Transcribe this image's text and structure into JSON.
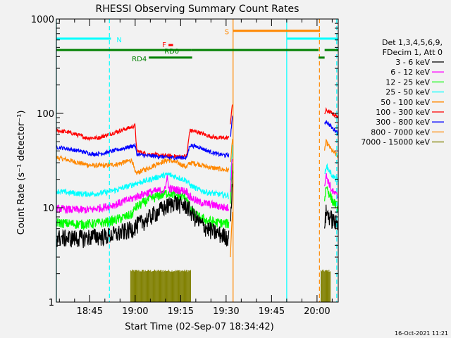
{
  "chart_data": {
    "type": "line",
    "title": "RHESSI Observing Summary Count Rates",
    "ylabel": "Count Rate (s⁻¹ detector⁻¹)",
    "xlabel": "Start Time (02-Sep-07 18:34:42)",
    "x_range_minutes_from_1834": [
      0,
      93
    ],
    "ylim": [
      1,
      1000
    ],
    "y_scale": "log",
    "y_ticks": [
      1,
      10,
      100,
      1000
    ],
    "y_tick_labels": [
      "1",
      "10",
      "100",
      "1000"
    ],
    "x_ticks": [
      {
        "min": 11,
        "label": "18:45"
      },
      {
        "min": 26,
        "label": "19:00"
      },
      {
        "min": 41,
        "label": "19:15"
      },
      {
        "min": 56,
        "label": "19:30"
      },
      {
        "min": 71,
        "label": "19:45"
      },
      {
        "min": 86,
        "label": "20:00"
      }
    ],
    "legend": {
      "header": [
        "Det 1,3,4,5,6,9,",
        "FDecim 1, Att 0"
      ],
      "placement": "right",
      "entries": [
        {
          "label": "3 - 6 keV",
          "color": "#000000"
        },
        {
          "label": "6 - 12 keV",
          "color": "#ff00ff"
        },
        {
          "label": "12 - 25 keV",
          "color": "#00ff00"
        },
        {
          "label": "25 - 50 keV",
          "color": "#00ffff"
        },
        {
          "label": "50 - 100 keV",
          "color": "#ff8800"
        },
        {
          "label": "100 - 300 keV",
          "color": "#ff0000"
        },
        {
          "label": "300 - 800 keV",
          "color": "#0000ff"
        },
        {
          "label": "800 - 7000 keV",
          "color": "#ff8800"
        },
        {
          "label": "7000 - 15000 keV",
          "color": "#808000"
        }
      ]
    },
    "series": [
      {
        "name": "3 - 6 keV",
        "color": "#000000",
        "noise": 0.22,
        "segments": [
          [
            [
              0,
              4.8
            ],
            [
              4,
              4.8
            ],
            [
              9,
              4.8
            ],
            [
              12,
              5.0
            ],
            [
              16,
              5.0
            ],
            [
              20,
              5.3
            ],
            [
              25,
              6.0
            ],
            [
              26,
              6.4
            ],
            [
              29,
              7.3
            ],
            [
              32,
              8.5
            ],
            [
              35,
              9.8
            ],
            [
              38,
              11.0
            ],
            [
              39,
              12.0
            ],
            [
              40,
              11.0
            ],
            [
              43,
              10.5
            ],
            [
              44,
              9.5
            ],
            [
              47,
              7.0
            ],
            [
              50,
              6.0
            ],
            [
              53,
              5.4
            ],
            [
              56,
              5.0
            ],
            [
              56.9,
              4.8
            ]
          ],
          [
            [
              57.5,
              9
            ],
            [
              57.8,
              12
            ],
            [
              58.2,
              20
            ],
            [
              58.4,
              30
            ]
          ],
          [
            [
              88.5,
              7
            ],
            [
              89,
              9
            ],
            [
              91,
              7.5
            ],
            [
              93,
              6.5
            ]
          ]
        ]
      },
      {
        "name": "6 - 12 keV",
        "color": "#ff00ff",
        "noise": 0.1,
        "segments": [
          [
            [
              0,
              9.8
            ],
            [
              4,
              9.6
            ],
            [
              9,
              9.5
            ],
            [
              12,
              9.6
            ],
            [
              16,
              10.2
            ],
            [
              20,
              11.0
            ],
            [
              25,
              12.5
            ],
            [
              26,
              13.0
            ],
            [
              30,
              14.5
            ],
            [
              34,
              15.2
            ],
            [
              36,
              15.5
            ],
            [
              36.5,
              23
            ],
            [
              37,
              16
            ],
            [
              40,
              15.5
            ],
            [
              43,
              15.0
            ],
            [
              44,
              13.0
            ],
            [
              47,
              11.5
            ],
            [
              50,
              11.0
            ],
            [
              53,
              10.5
            ],
            [
              56,
              10.0
            ],
            [
              56.9,
              10.0
            ]
          ],
          [
            [
              57.4,
              15
            ],
            [
              57.8,
              25
            ],
            [
              58.2,
              40
            ]
          ],
          [
            [
              88.5,
              18
            ],
            [
              89,
              22
            ],
            [
              91,
              15
            ],
            [
              93,
              13
            ]
          ]
        ]
      },
      {
        "name": "12 - 25 keV",
        "color": "#00ff00",
        "noise": 0.12,
        "segments": [
          [
            [
              0,
              7.0
            ],
            [
              4,
              6.8
            ],
            [
              9,
              6.7
            ],
            [
              12,
              6.8
            ],
            [
              16,
              7.0
            ],
            [
              20,
              7.5
            ],
            [
              25,
              8.5
            ],
            [
              26,
              10.0
            ],
            [
              30,
              12.0
            ],
            [
              34,
              13.5
            ],
            [
              37,
              14.5
            ],
            [
              40,
              13.5
            ],
            [
              43,
              13.0
            ],
            [
              44,
              9.5
            ],
            [
              47,
              8.0
            ],
            [
              50,
              7.3
            ],
            [
              53,
              7.0
            ],
            [
              56,
              6.8
            ],
            [
              56.9,
              6.8
            ]
          ],
          [
            [
              57.4,
              12
            ],
            [
              57.8,
              20
            ],
            [
              58.2,
              34
            ]
          ],
          [
            [
              88.5,
              12
            ],
            [
              89,
              17
            ],
            [
              91,
              12
            ],
            [
              93,
              10
            ]
          ]
        ]
      },
      {
        "name": "25 - 50 keV",
        "color": "#00ffff",
        "noise": 0.07,
        "segments": [
          [
            [
              0,
              15
            ],
            [
              4,
              14.5
            ],
            [
              9,
              14
            ],
            [
              12,
              14
            ],
            [
              16,
              14.5
            ],
            [
              20,
              15.5
            ],
            [
              25,
              17.5
            ],
            [
              26,
              18
            ],
            [
              30,
              19.5
            ],
            [
              34,
              21.5
            ],
            [
              37,
              22.5
            ],
            [
              40,
              21
            ],
            [
              43,
              19.5
            ],
            [
              44,
              17.5
            ],
            [
              47,
              15.5
            ],
            [
              50,
              14.5
            ],
            [
              53,
              14
            ],
            [
              56,
              13.5
            ],
            [
              56.9,
              13.5
            ]
          ],
          [
            [
              57.4,
              20
            ],
            [
              57.8,
              30
            ],
            [
              58.2,
              48
            ]
          ],
          [
            [
              88.5,
              22
            ],
            [
              89,
              28
            ],
            [
              91,
              22
            ],
            [
              93,
              19
            ]
          ]
        ]
      },
      {
        "name": "50 - 100 keV",
        "color": "#ff8800",
        "noise": 0.06,
        "segments": [
          [
            [
              0,
              34
            ],
            [
              4,
              32
            ],
            [
              9,
              29
            ],
            [
              12,
              28
            ],
            [
              16,
              28
            ],
            [
              20,
              29
            ],
            [
              25,
              32
            ],
            [
              26,
              23
            ],
            [
              30,
              26
            ],
            [
              34,
              30
            ],
            [
              37,
              32
            ],
            [
              40,
              30
            ],
            [
              43,
              27
            ],
            [
              44,
              30
            ],
            [
              47,
              29
            ],
            [
              50,
              27
            ],
            [
              53,
              26
            ],
            [
              56,
              25
            ],
            [
              56.9,
              25
            ]
          ],
          [
            [
              57.4,
              30
            ],
            [
              57.8,
              40
            ],
            [
              58.2,
              55
            ]
          ],
          [
            [
              88.5,
              42
            ],
            [
              89,
              50
            ],
            [
              91,
              40
            ],
            [
              93,
              35
            ]
          ]
        ]
      },
      {
        "name": "100 - 300 keV",
        "color": "#ff0000",
        "noise": 0.05,
        "segments": [
          [
            [
              0,
              66
            ],
            [
              4,
              63
            ],
            [
              8,
              58
            ],
            [
              10,
              55
            ],
            [
              14,
              55
            ],
            [
              16,
              58
            ],
            [
              20,
              64
            ],
            [
              25,
              72
            ],
            [
              26,
              74
            ],
            [
              26.5,
              40
            ],
            [
              30,
              37
            ],
            [
              34,
              36
            ],
            [
              37,
              35.5
            ],
            [
              40,
              35
            ],
            [
              43,
              35
            ],
            [
              44,
              66
            ],
            [
              47,
              63
            ],
            [
              50,
              58
            ],
            [
              53,
              55
            ],
            [
              56,
              55
            ],
            [
              56.9,
              55
            ]
          ],
          [
            [
              57.4,
              80
            ],
            [
              57.8,
              105
            ],
            [
              58.2,
              128
            ]
          ],
          [
            [
              88.5,
              100
            ],
            [
              89,
              108
            ],
            [
              91,
              100
            ],
            [
              93,
              92
            ]
          ]
        ]
      },
      {
        "name": "300 - 800 keV",
        "color": "#0000ff",
        "noise": 0.05,
        "segments": [
          [
            [
              0,
              44
            ],
            [
              4,
              42
            ],
            [
              9,
              39
            ],
            [
              12,
              37
            ],
            [
              16,
              38
            ],
            [
              20,
              41
            ],
            [
              25,
              45
            ],
            [
              26,
              46
            ],
            [
              26.5,
              37
            ],
            [
              30,
              35.5
            ],
            [
              34,
              35
            ],
            [
              37,
              34
            ],
            [
              40,
              34
            ],
            [
              43,
              34
            ],
            [
              44,
              46
            ],
            [
              47,
              44
            ],
            [
              50,
              40
            ],
            [
              53,
              37
            ],
            [
              56,
              36
            ],
            [
              56.9,
              36
            ]
          ],
          [
            [
              57.4,
              55
            ],
            [
              57.8,
              75
            ],
            [
              58.2,
              95
            ]
          ],
          [
            [
              88.5,
              80
            ],
            [
              89,
              83
            ],
            [
              91,
              70
            ],
            [
              93,
              62
            ]
          ]
        ]
      },
      {
        "name": "800 - 7000 keV",
        "color": "#ff8800",
        "noise": 0.0,
        "segments": [
          [
            [
              57.4,
              3.0
            ],
            [
              57.8,
              6.0
            ],
            [
              58.2,
              10.0
            ]
          ]
        ]
      },
      {
        "name": "7000 - 15000 keV",
        "color": "#808000",
        "noise": 0.0,
        "segments": []
      }
    ],
    "bars_7000_15000": [
      {
        "x0": 24.5,
        "x1": 44.5,
        "ymax": 2.15
      },
      {
        "x0": 87.3,
        "x1": 90.5,
        "ymax": 2.15
      }
    ],
    "annotations": {
      "flags": [
        {
          "label": "N",
          "color": "#00ffff",
          "y": 620,
          "segs": [
            [
              0,
              18
            ]
          ]
        },
        {
          "label": "",
          "color": "#00ffff",
          "y": 620,
          "segs": [
            [
              76,
              93
            ]
          ]
        },
        {
          "label": "S",
          "color": "#ff8800",
          "y": 750,
          "segs": [
            [
              58.3,
              87
            ]
          ]
        },
        {
          "label": "F",
          "color": "#ff0000",
          "y": 530,
          "segs": [
            [
              37,
              38.5
            ]
          ]
        },
        {
          "label": "RD0",
          "color": "#008000",
          "y": 470,
          "segs": [
            [
              0,
              44.5
            ],
            [
              44.5,
              86.5
            ],
            [
              88.5,
              93
            ]
          ]
        },
        {
          "label": "RD4",
          "color": "#008000",
          "y": 390,
          "segs": [
            [
              30.5,
              44.8
            ],
            [
              86.5,
              88.5
            ]
          ]
        }
      ],
      "vlines": [
        {
          "x": 0.0,
          "color": "#00ffff",
          "dash": false
        },
        {
          "x": 17.5,
          "color": "#00ffff",
          "dash": true
        },
        {
          "x": 58.3,
          "color": "#ff8800",
          "dash": false
        },
        {
          "x": 76.0,
          "color": "#00ffff",
          "dash": false
        },
        {
          "x": 86.8,
          "color": "#ff8800",
          "dash": true
        },
        {
          "x": 92.5,
          "color": "#00ffff",
          "dash": true
        }
      ]
    },
    "footer_timestamp": "16-Oct-2021 11:21"
  }
}
